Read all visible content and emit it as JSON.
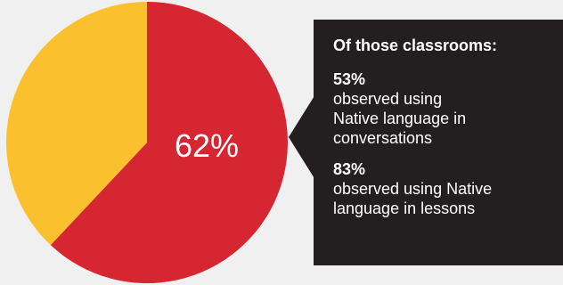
{
  "chart_data": {
    "type": "pie",
    "slices": [
      {
        "label": "",
        "value": 62,
        "color": "#d62631"
      },
      {
        "label": "",
        "value": 38,
        "color": "#fbc02d"
      }
    ],
    "data_label": "62%"
  },
  "callout": {
    "heading": "Of those classrooms:",
    "stats": [
      {
        "value": "53%",
        "description": "observed using\nNative language in\nconversations"
      },
      {
        "value": "83%",
        "description": "observed using Native\nlanguage in lessons"
      }
    ]
  },
  "colors": {
    "background": "#f0f0f0",
    "callout_background": "#231f20",
    "primary_slice": "#d62631",
    "secondary_slice": "#fbc02d"
  }
}
